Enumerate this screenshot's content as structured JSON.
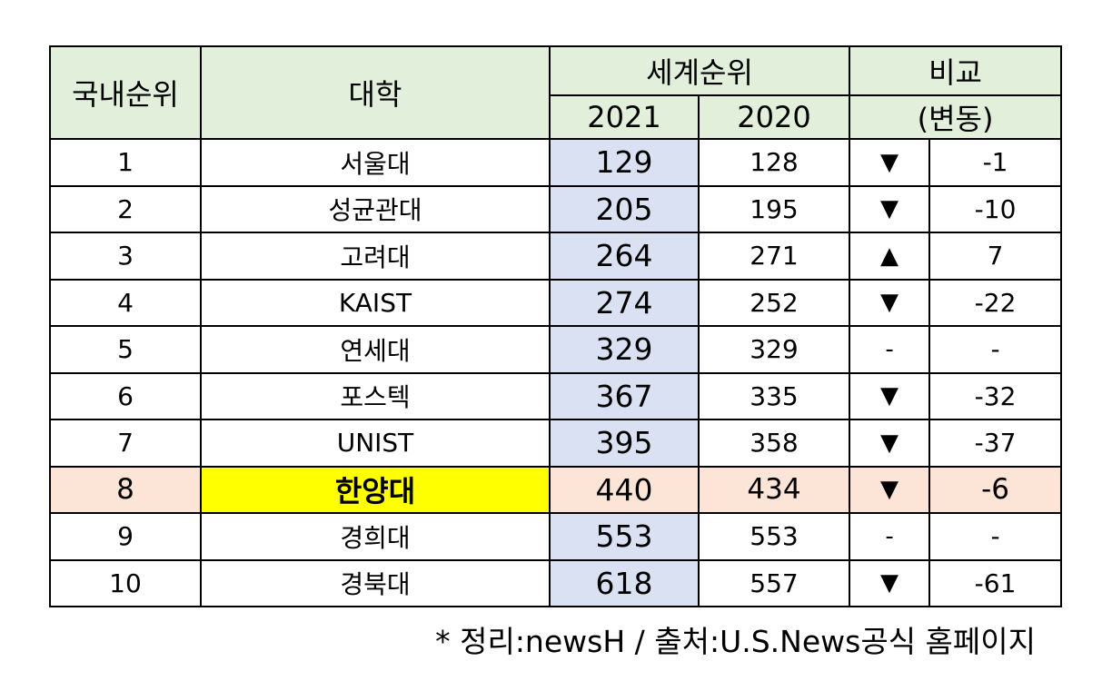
{
  "headers": {
    "domestic_rank": "국내순위",
    "university": "대학",
    "world_rank": "세계순위",
    "year_2021": "2021",
    "year_2020": "2020",
    "compare": "비교",
    "change": "(변동)"
  },
  "rows": [
    {
      "rank": "1",
      "university": "서울대",
      "r2021": "129",
      "r2020": "128",
      "arrow": "▼",
      "change": "-1"
    },
    {
      "rank": "2",
      "university": "성균관대",
      "r2021": "205",
      "r2020": "195",
      "arrow": "▼",
      "change": "-10"
    },
    {
      "rank": "3",
      "university": "고려대",
      "r2021": "264",
      "r2020": "271",
      "arrow": "▲",
      "change": "7"
    },
    {
      "rank": "4",
      "university": "KAIST",
      "r2021": "274",
      "r2020": "252",
      "arrow": "▼",
      "change": "-22"
    },
    {
      "rank": "5",
      "university": "연세대",
      "r2021": "329",
      "r2020": "329",
      "arrow": "-",
      "change": "-"
    },
    {
      "rank": "6",
      "university": "포스텍",
      "r2021": "367",
      "r2020": "335",
      "arrow": "▼",
      "change": "-32"
    },
    {
      "rank": "7",
      "university": "UNIST",
      "r2021": "395",
      "r2020": "358",
      "arrow": "▼",
      "change": "-37"
    },
    {
      "rank": "8",
      "university": "한양대",
      "r2021": "440",
      "r2020": "434",
      "arrow": "▼",
      "change": "-6"
    },
    {
      "rank": "9",
      "university": "경희대",
      "r2021": "553",
      "r2020": "553",
      "arrow": "-",
      "change": "-"
    },
    {
      "rank": "10",
      "university": "경북대",
      "r2021": "618",
      "r2020": "557",
      "arrow": "▼",
      "change": "-61"
    }
  ],
  "footnote": "* 정리:newsH / 출처:U.S.News공식 홈페이지",
  "colors": {
    "header_bg": "#e2efda",
    "col2021_bg": "#d9e1f2",
    "highlight_row_bg": "#fce4d6",
    "highlight_uni_bg": "#ffff00"
  }
}
